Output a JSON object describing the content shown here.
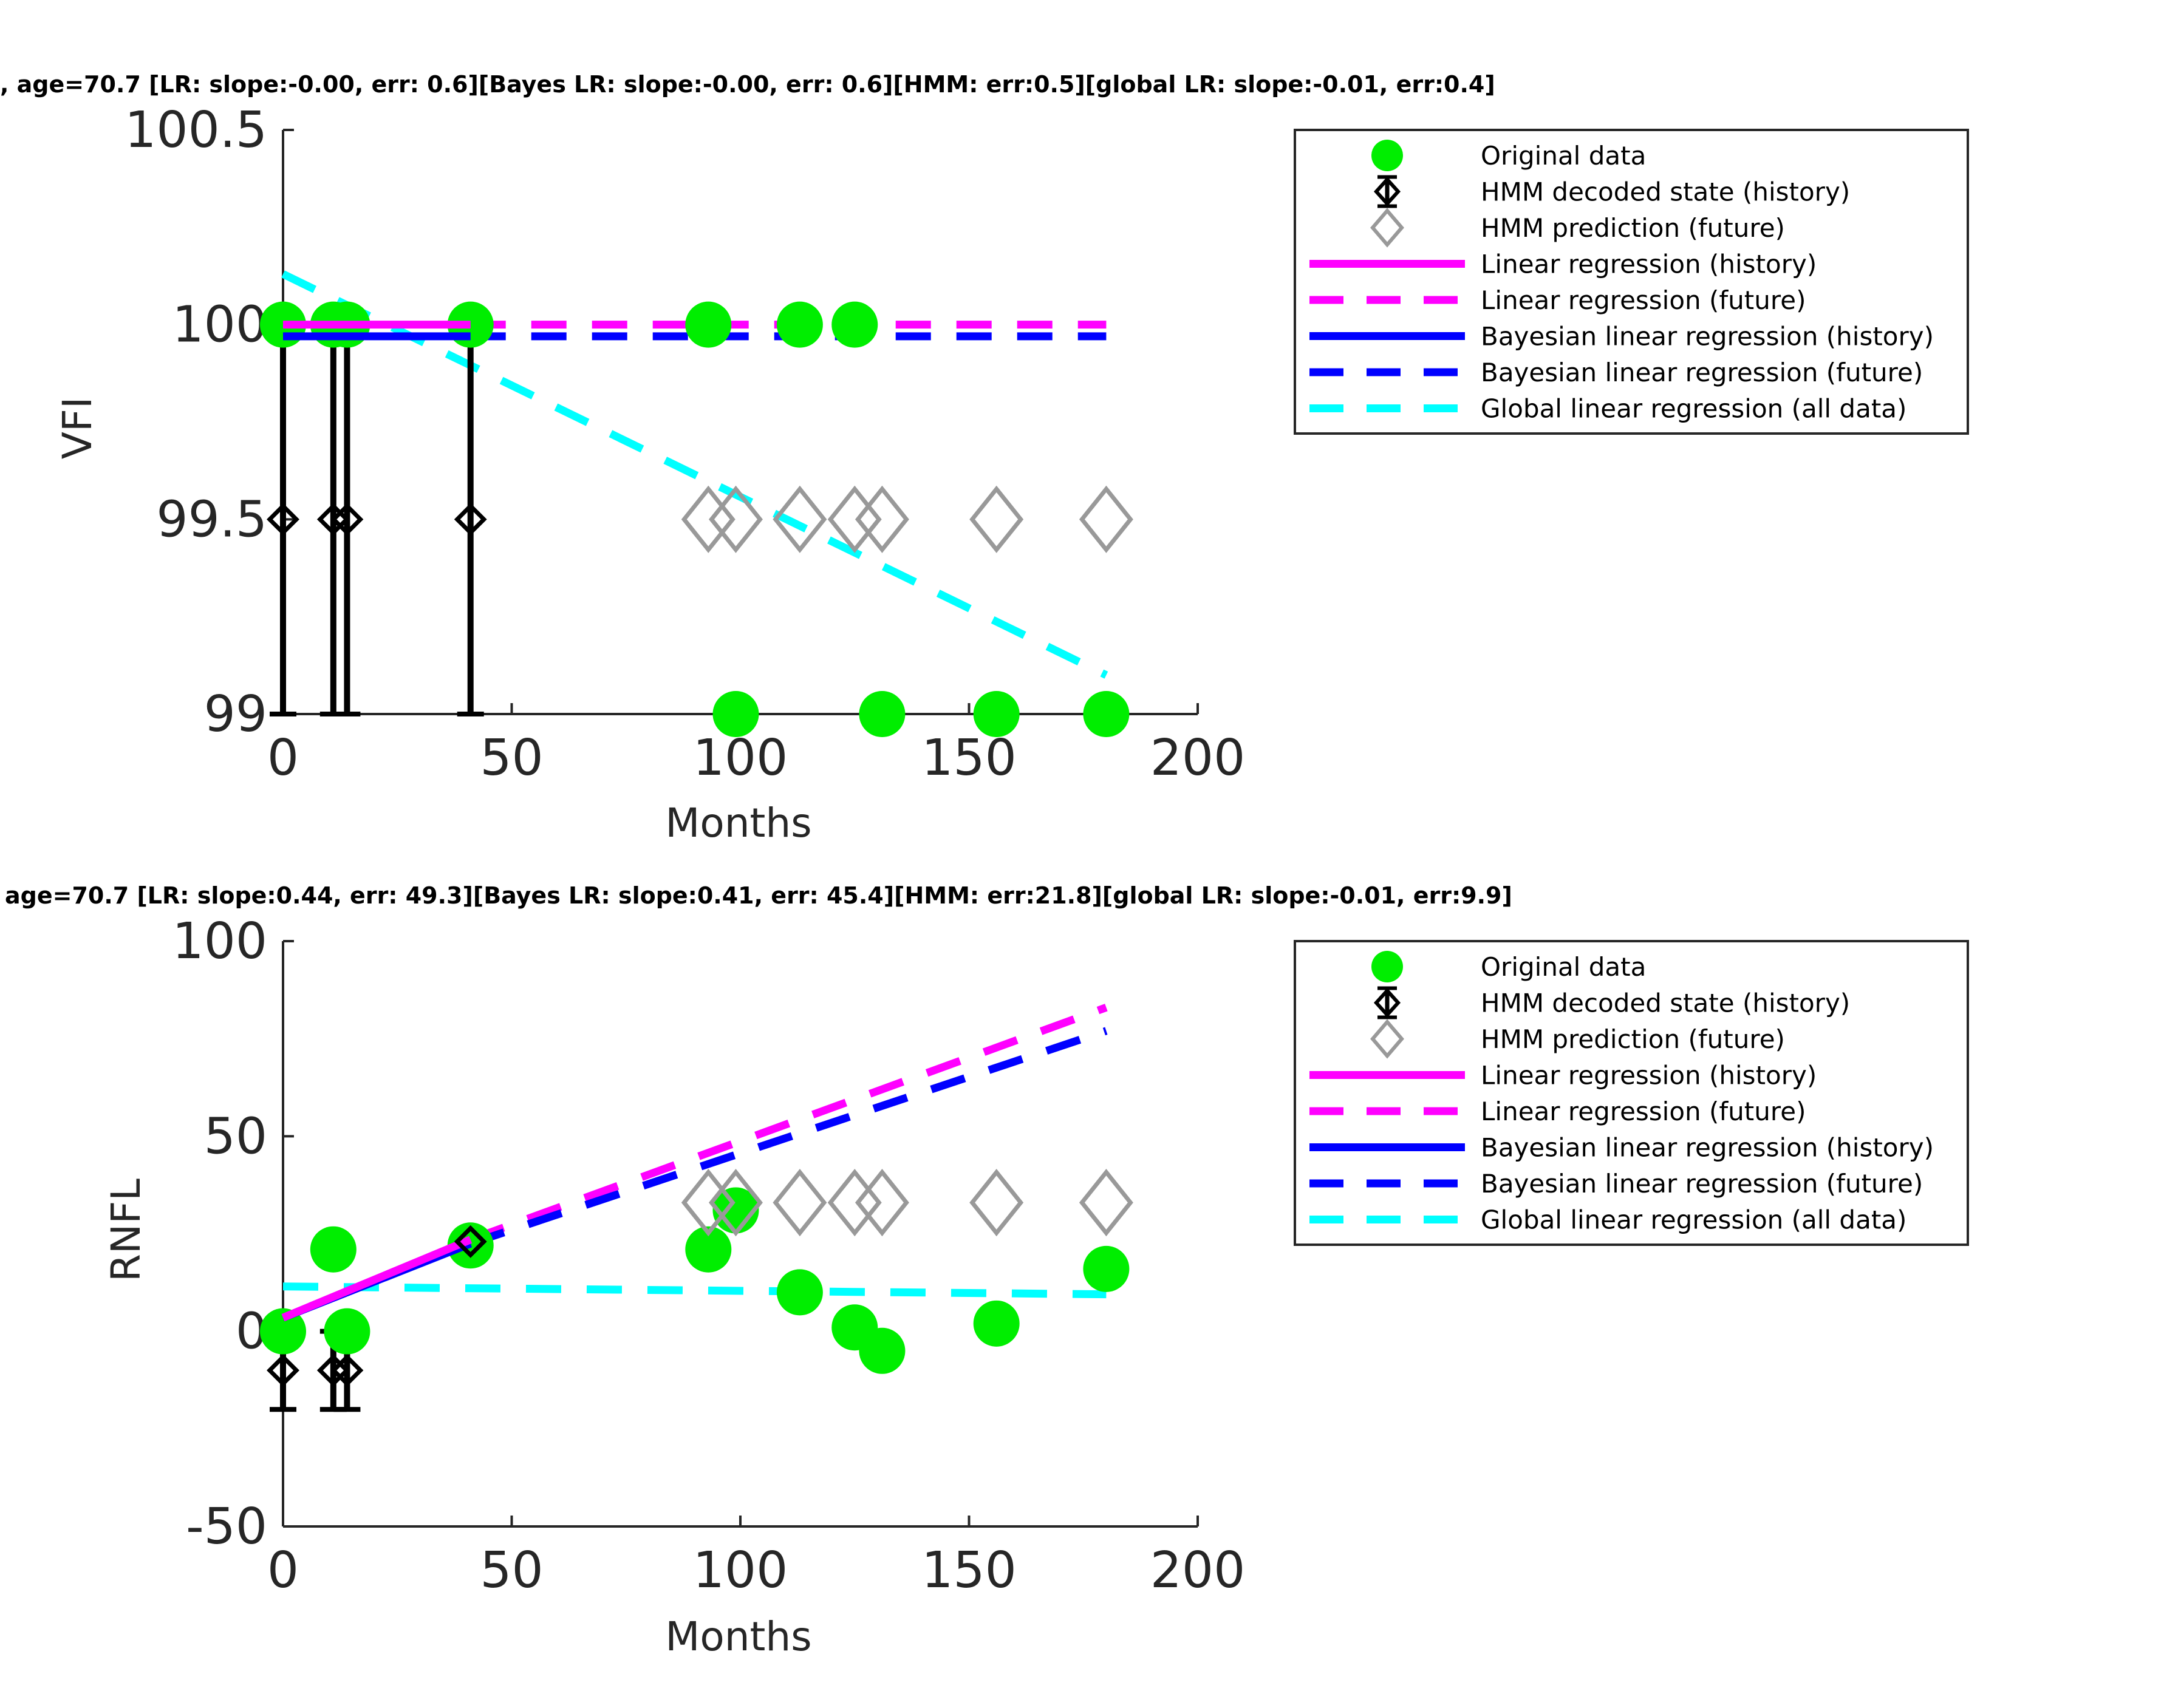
{
  "legend_labels": [
    "Original data",
    "HMM decoded state (history)",
    "HMM prediction (future)",
    "Linear regression (history)",
    "Linear regression (future)",
    "Bayesian linear regression (history)",
    "Bayesian linear regression (future)",
    "Global linear regression (all data)"
  ],
  "colors": {
    "original": "#00ee00",
    "hmm_history": "#000000",
    "hmm_future": "#999999",
    "lr": "#ff00ff",
    "bayes": "#0000ff",
    "global": "#00ffff",
    "axis": "#262626"
  },
  "chart_data": [
    {
      "type": "scatter",
      "title": ", age=70.7 [LR: slope:-0.00, err: 0.6][Bayes LR: slope:-0.00, err: 0.6][HMM: err:0.5][global LR: slope:-0.01, err:0.4]",
      "xlabel": "Months",
      "ylabel": "VFI",
      "xlim": [
        0,
        200
      ],
      "ylim": [
        99,
        100.5
      ],
      "xticks": [
        0,
        50,
        100,
        150,
        200
      ],
      "yticks": [
        99,
        99.5,
        100,
        100.5
      ],
      "xtick_labels": [
        "0",
        "50",
        "100",
        "150",
        "200"
      ],
      "ytick_labels": [
        "99",
        "99.5",
        "100",
        "100.5"
      ],
      "legend_position": "right",
      "series": [
        {
          "name": "Original data",
          "kind": "points",
          "x": [
            0,
            11,
            14,
            41,
            93,
            99,
            113,
            125,
            131,
            156,
            180
          ],
          "y": [
            100,
            100,
            100,
            100,
            100,
            99,
            100,
            100,
            99,
            99,
            99
          ]
        },
        {
          "name": "HMM decoded state (history)",
          "kind": "errorbar",
          "x": [
            0,
            11,
            14,
            41
          ],
          "y": [
            99.5,
            99.5,
            99.5,
            99.5
          ],
          "lower": [
            99,
            99,
            99,
            99
          ],
          "upper": [
            100,
            100,
            100,
            100
          ]
        },
        {
          "name": "HMM prediction (future)",
          "kind": "diamonds",
          "x": [
            93,
            99,
            113,
            125,
            131,
            156,
            180
          ],
          "y": [
            99.5,
            99.5,
            99.5,
            99.5,
            99.5,
            99.5,
            99.5
          ]
        },
        {
          "name": "Linear regression (history)",
          "kind": "solid",
          "x": [
            0,
            41
          ],
          "y": [
            100,
            100
          ]
        },
        {
          "name": "Linear regression (future)",
          "kind": "dashed",
          "x": [
            41,
            180
          ],
          "y": [
            100,
            100
          ]
        },
        {
          "name": "Bayesian linear regression (history)",
          "kind": "solid",
          "x": [
            0,
            41
          ],
          "y": [
            99.97,
            99.97
          ]
        },
        {
          "name": "Bayesian linear regression (future)",
          "kind": "dashed",
          "x": [
            41,
            180
          ],
          "y": [
            99.97,
            99.97
          ]
        },
        {
          "name": "Global linear regression (all data)",
          "kind": "dashed",
          "x": [
            0,
            180
          ],
          "y": [
            100.13,
            99.1
          ]
        }
      ]
    },
    {
      "type": "scatter",
      "title": "age=70.7 [LR: slope:0.44, err: 49.3][Bayes LR: slope:0.41, err: 45.4][HMM: err:21.8][global LR: slope:-0.01, err:9.9]",
      "xlabel": "Months",
      "ylabel": "RNFL",
      "xlim": [
        0,
        200
      ],
      "ylim": [
        -50,
        100
      ],
      "xticks": [
        0,
        50,
        100,
        150,
        200
      ],
      "yticks": [
        -50,
        0,
        50,
        100
      ],
      "xtick_labels": [
        "0",
        "50",
        "100",
        "150",
        "200"
      ],
      "ytick_labels": [
        "-50",
        "0",
        "50",
        "100"
      ],
      "legend_position": "right",
      "series": [
        {
          "name": "Original data",
          "kind": "points",
          "x": [
            0,
            11,
            14,
            41,
            93,
            99,
            113,
            125,
            131,
            156,
            180
          ],
          "y": [
            0,
            21,
            0,
            22,
            21,
            31,
            10,
            1,
            -5,
            2,
            16
          ]
        },
        {
          "name": "HMM decoded state (history)",
          "kind": "errorbar",
          "x": [
            0,
            11,
            14,
            41
          ],
          "y": [
            -10,
            -10,
            -10,
            23
          ],
          "lower": [
            -20,
            -20,
            -20,
            20
          ],
          "upper": [
            0,
            0,
            0,
            26
          ]
        },
        {
          "name": "HMM prediction (future)",
          "kind": "diamonds",
          "x": [
            93,
            99,
            113,
            125,
            131,
            156,
            180
          ],
          "y": [
            33,
            33,
            33,
            33,
            33,
            33,
            33
          ]
        },
        {
          "name": "Linear regression (history)",
          "kind": "solid",
          "x": [
            0,
            41
          ],
          "y": [
            3.5,
            23.5
          ]
        },
        {
          "name": "Linear regression (future)",
          "kind": "dashed",
          "x": [
            41,
            180
          ],
          "y": [
            23.5,
            83
          ]
        },
        {
          "name": "Bayesian linear regression (history)",
          "kind": "solid",
          "x": [
            0,
            41
          ],
          "y": [
            3.5,
            22.5
          ]
        },
        {
          "name": "Bayesian linear regression (future)",
          "kind": "dashed",
          "x": [
            41,
            180
          ],
          "y": [
            22.5,
            77
          ]
        },
        {
          "name": "Global linear regression (all data)",
          "kind": "dashed",
          "x": [
            0,
            180
          ],
          "y": [
            11.5,
            9.5
          ]
        }
      ]
    }
  ]
}
